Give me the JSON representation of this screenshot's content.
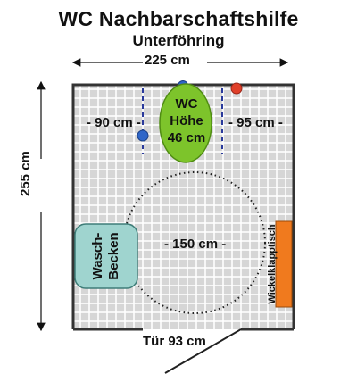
{
  "title": "WC Nachbarschaftshilfe",
  "subtitle": "Unterföhring",
  "dimensions": {
    "width": "225 cm",
    "depth": "255 cm",
    "left_clearance": "- 90 cm -",
    "right_clearance": "- 95 cm -",
    "turning_circle": "- 150 cm -",
    "door": "Tür  93 cm"
  },
  "toilet": {
    "line1": "WC",
    "line2": "Höhe",
    "line3": "46 cm"
  },
  "sink": {
    "line1": "Wasch-",
    "line2": "Becken"
  },
  "changing_table": "Wickelklapptisch",
  "colors": {
    "toilet": "#7dc42b",
    "sink": "#9fd4cf",
    "changing_table": "#f07a1e",
    "grab_bar": "#2a3a9c",
    "button_blue": "#2f66c8",
    "button_red": "#e0402a",
    "floor_tile": "#d6d6d6",
    "wall": "#333333"
  },
  "icons": [
    "double-arrow-horizontal",
    "double-arrow-vertical"
  ]
}
